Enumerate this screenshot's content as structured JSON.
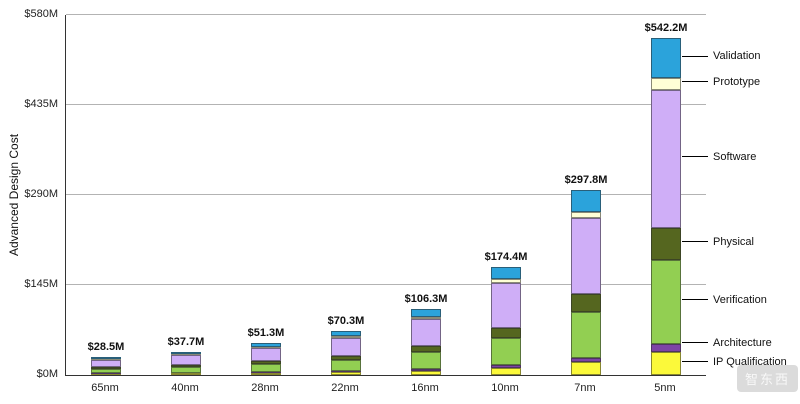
{
  "chart_data": {
    "type": "bar",
    "stacked": true,
    "title": "",
    "xlabel": "",
    "ylabel": "Advanced Design Cost",
    "ylim": [
      0,
      580
    ],
    "grid": true,
    "categories": [
      "65nm",
      "40nm",
      "28nm",
      "22nm",
      "16nm",
      "10nm",
      "7nm",
      "5nm"
    ],
    "totals_labels": [
      "$28.5M",
      "$37.7M",
      "$51.3M",
      "$70.3M",
      "$106.3M",
      "$174.4M",
      "$297.8M",
      "$542.2M"
    ],
    "totals_values": [
      28.5,
      37.7,
      51.3,
      70.3,
      106.3,
      174.4,
      297.8,
      542.2
    ],
    "yticks": {
      "values": [
        0,
        145,
        290,
        435,
        580
      ],
      "labels": [
        "$0M",
        "$145M",
        "$290M",
        "$435M",
        "$580M"
      ]
    },
    "series": [
      {
        "name": "IP Qualification",
        "color": "#fbf93a",
        "values": [
          2.0,
          2.6,
          3.5,
          4.8,
          7.2,
          11.9,
          20.2,
          36.9
        ]
      },
      {
        "name": "Architecture",
        "color": "#7d44a5",
        "values": [
          0.7,
          0.9,
          1.3,
          1.8,
          2.7,
          4.4,
          7.4,
          13.6
        ]
      },
      {
        "name": "Verification",
        "color": "#92cf52",
        "values": [
          7.1,
          9.4,
          12.8,
          17.5,
          26.5,
          43.4,
          74.2,
          135.0
        ]
      },
      {
        "name": "Physical",
        "color": "#55661f",
        "values": [
          2.7,
          3.6,
          4.9,
          6.7,
          10.2,
          16.7,
          28.6,
          52.1
        ]
      },
      {
        "name": "Software",
        "color": "#cfaef7",
        "values": [
          11.7,
          15.5,
          21.0,
          28.8,
          43.6,
          71.5,
          122.1,
          222.3
        ]
      },
      {
        "name": "Prototype",
        "color": "#ffffd6",
        "values": [
          1.0,
          1.3,
          1.8,
          2.5,
          3.7,
          6.1,
          10.4,
          19.0
        ]
      },
      {
        "name": "Validation",
        "color": "#2ba3db",
        "values": [
          3.3,
          4.4,
          6.0,
          8.2,
          12.4,
          20.4,
          34.9,
          63.3
        ]
      }
    ],
    "legend": {
      "position": "right",
      "order_top_to_bottom": [
        "Validation",
        "Prototype",
        "Software",
        "Physical",
        "Verification",
        "Architecture",
        "IP Qualification"
      ]
    }
  },
  "watermark": {
    "text": "智东西"
  }
}
